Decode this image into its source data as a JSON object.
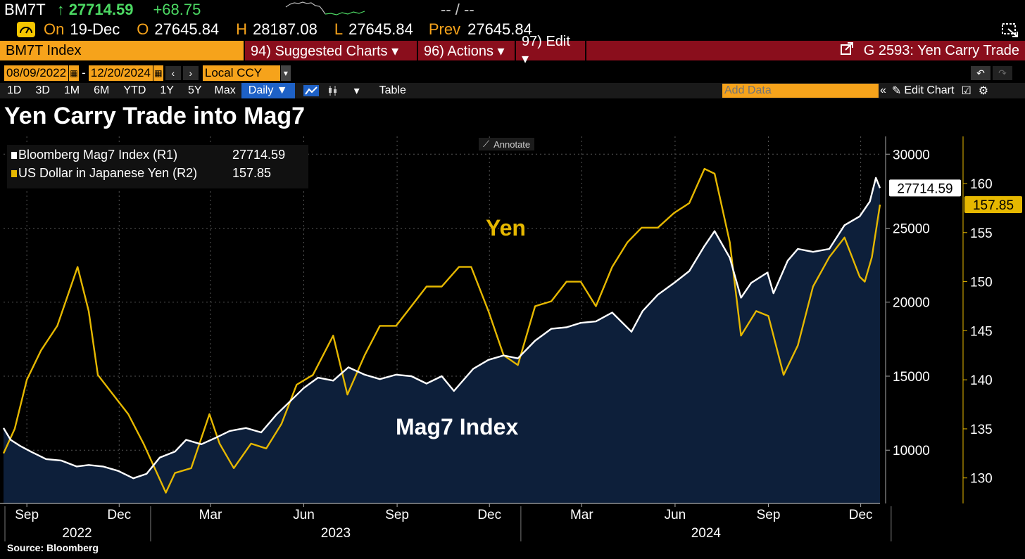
{
  "ticker_bar": {
    "ticker": "BM7T",
    "arrow": "↑",
    "last": "27714.59",
    "change": "+68.75",
    "time": "-- / --"
  },
  "quote_bar": {
    "on_label": "On",
    "date": "19-Dec",
    "o_label": "O",
    "open": "27645.84",
    "h_label": "H",
    "high": "28187.08",
    "l_label": "L",
    "low": "27645.84",
    "prev_label": "Prev",
    "prev": "27645.84"
  },
  "menu_bar": {
    "security": "BM7T Index",
    "suggested_charts": "94) Suggested Charts ▾",
    "actions": "96) Actions ▾",
    "edit": "97) Edit ▾",
    "chart_title": "G 2593: Yen Carry Trade"
  },
  "date_bar": {
    "start": "08/09/2022",
    "dash": "-",
    "end": "12/20/2024",
    "prev": "‹",
    "next": "›",
    "currency": "Local CCY"
  },
  "period_bar": {
    "periods": [
      "1D",
      "3D",
      "1M",
      "6M",
      "YTD",
      "1Y",
      "5Y",
      "Max"
    ],
    "frequency": "Daily ▼",
    "table": "Table",
    "add_data_placeholder": "Add Data",
    "edit_chart": "Edit Chart"
  },
  "colors": {
    "mag7": "#ffffff",
    "yen": "#e6b800",
    "area": "#0d1f3a",
    "accent": "#f6a31b",
    "menu": "#8a0e1c"
  },
  "chart_data": {
    "type": "line",
    "title": "Yen Carry Trade into Mag7",
    "annotate_label": "Annotate",
    "source": "Source: Bloomberg",
    "annotations": [
      {
        "text": "Yen",
        "color": "#e6b800"
      },
      {
        "text": "Mag7 Index",
        "color": "#ffffff"
      }
    ],
    "x_ticks": [
      "Sep",
      "Dec",
      "Mar",
      "Jun",
      "Sep",
      "Dec",
      "Mar",
      "Jun",
      "Sep",
      "Dec"
    ],
    "x_tick_dates": [
      "2022-09-01",
      "2022-12-01",
      "2023-03-01",
      "2023-06-01",
      "2023-09-01",
      "2023-12-01",
      "2024-03-01",
      "2024-06-01",
      "2024-09-01",
      "2024-12-01"
    ],
    "x_years": [
      "2022",
      "2023",
      "2024"
    ],
    "x_range": [
      "2022-08-09",
      "2024-12-20"
    ],
    "y_right1": {
      "ticks": [
        10000,
        15000,
        20000,
        25000,
        30000
      ],
      "range": [
        6400,
        31200
      ]
    },
    "y_right2": {
      "ticks": [
        130,
        135,
        140,
        145,
        150,
        155,
        160
      ],
      "range": [
        127.4,
        164.8
      ]
    },
    "legend": [
      {
        "name": "Bloomberg Mag7 Index (R1)",
        "value": "27714.59"
      },
      {
        "name": "US Dollar in Japanese Yen (R2)",
        "value": "157.85"
      }
    ],
    "last_labels": {
      "mag7": "27714.59",
      "yen": "157.85"
    },
    "series": [
      {
        "name": "Bloomberg Mag7 Index (R1)",
        "axis": "R1",
        "area": true,
        "x": [
          "2022-08-09",
          "2022-08-16",
          "2022-08-25",
          "2022-09-05",
          "2022-09-20",
          "2022-10-05",
          "2022-10-20",
          "2022-11-01",
          "2022-11-15",
          "2022-11-30",
          "2022-12-15",
          "2022-12-28",
          "2023-01-10",
          "2023-01-25",
          "2023-02-05",
          "2023-02-20",
          "2023-03-05",
          "2023-03-20",
          "2023-04-05",
          "2023-04-20",
          "2023-05-05",
          "2023-05-20",
          "2023-06-01",
          "2023-06-15",
          "2023-06-30",
          "2023-07-15",
          "2023-07-31",
          "2023-08-15",
          "2023-08-31",
          "2023-09-15",
          "2023-09-30",
          "2023-10-15",
          "2023-10-27",
          "2023-11-15",
          "2023-11-30",
          "2023-12-15",
          "2023-12-29",
          "2024-01-15",
          "2024-01-31",
          "2024-02-15",
          "2024-02-29",
          "2024-03-15",
          "2024-03-31",
          "2024-04-19",
          "2024-04-30",
          "2024-05-15",
          "2024-05-31",
          "2024-06-15",
          "2024-06-30",
          "2024-07-10",
          "2024-07-25",
          "2024-08-05",
          "2024-08-15",
          "2024-08-31",
          "2024-09-06",
          "2024-09-20",
          "2024-09-30",
          "2024-10-15",
          "2024-10-31",
          "2024-11-15",
          "2024-11-30",
          "2024-12-10",
          "2024-12-16",
          "2024-12-20"
        ],
        "values": [
          11500,
          10700,
          10300,
          9900,
          9400,
          9300,
          8900,
          9000,
          8900,
          8600,
          8100,
          8400,
          9500,
          9900,
          10700,
          10400,
          10800,
          11300,
          11500,
          11200,
          12400,
          13400,
          14200,
          14900,
          14700,
          15600,
          15100,
          14800,
          15100,
          15000,
          14500,
          15000,
          14000,
          15500,
          16100,
          16400,
          16200,
          17400,
          18200,
          18300,
          18600,
          18700,
          19300,
          18000,
          19400,
          20500,
          21300,
          22100,
          23800,
          24800,
          23000,
          20300,
          21300,
          22000,
          20600,
          22800,
          23600,
          23400,
          23600,
          25200,
          25800,
          26800,
          28400,
          27715
        ]
      },
      {
        "name": "US Dollar in Japanese Yen (R2)",
        "axis": "R2",
        "area": false,
        "x": [
          "2022-08-09",
          "2022-08-20",
          "2022-09-01",
          "2022-09-15",
          "2022-10-01",
          "2022-10-21",
          "2022-11-01",
          "2022-11-10",
          "2022-11-25",
          "2022-12-10",
          "2022-12-25",
          "2023-01-16",
          "2023-01-25",
          "2023-02-10",
          "2023-02-28",
          "2023-03-10",
          "2023-03-24",
          "2023-04-10",
          "2023-04-25",
          "2023-05-10",
          "2023-05-25",
          "2023-06-10",
          "2023-06-30",
          "2023-07-14",
          "2023-07-31",
          "2023-08-15",
          "2023-08-31",
          "2023-09-15",
          "2023-09-30",
          "2023-10-15",
          "2023-11-01",
          "2023-11-13",
          "2023-11-30",
          "2023-12-15",
          "2023-12-29",
          "2024-01-15",
          "2024-01-31",
          "2024-02-15",
          "2024-02-29",
          "2024-03-15",
          "2024-03-31",
          "2024-04-15",
          "2024-04-29",
          "2024-05-15",
          "2024-05-31",
          "2024-06-15",
          "2024-06-30",
          "2024-07-10",
          "2024-07-25",
          "2024-08-05",
          "2024-08-20",
          "2024-09-01",
          "2024-09-16",
          "2024-09-30",
          "2024-10-15",
          "2024-10-31",
          "2024-11-15",
          "2024-11-30",
          "2024-12-05",
          "2024-12-12",
          "2024-12-20"
        ],
        "values": [
          132.5,
          135.0,
          140.0,
          143.0,
          145.5,
          151.5,
          147.0,
          140.5,
          138.5,
          136.5,
          133.5,
          128.5,
          130.5,
          131.0,
          136.5,
          133.5,
          131.0,
          133.5,
          133.0,
          135.5,
          139.5,
          140.5,
          144.5,
          138.5,
          142.5,
          145.5,
          145.5,
          147.5,
          149.5,
          149.5,
          151.5,
          151.5,
          147.0,
          142.5,
          141.5,
          147.5,
          148.0,
          150.0,
          150.0,
          147.5,
          151.5,
          154.0,
          155.5,
          155.5,
          157.0,
          158.0,
          161.5,
          161.0,
          154.0,
          144.5,
          147.0,
          146.5,
          140.5,
          143.5,
          149.5,
          152.5,
          154.5,
          150.5,
          150.0,
          152.5,
          157.85
        ]
      }
    ]
  }
}
